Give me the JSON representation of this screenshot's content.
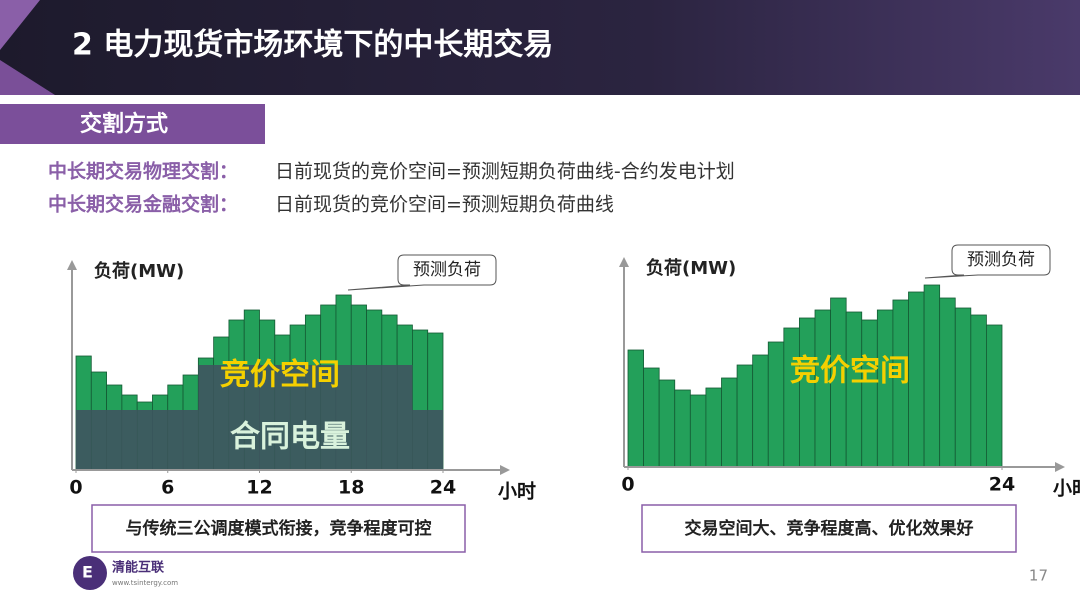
{
  "header": {
    "title": "2 电力现货市场环境下的中长期交易"
  },
  "section": "交割方式",
  "definitions": [
    {
      "term": "中长期交易物理交割：",
      "text": "日前现货的竞价空间=预测短期负荷曲线-合约发电计划"
    },
    {
      "term": "中长期交易金融交割：",
      "text": "日前现货的竞价空间=预测短期负荷曲线"
    }
  ],
  "chart_data": [
    {
      "type": "bar",
      "y_label": "负荷(MW)",
      "x_label": "小时",
      "callout": "预测负荷",
      "annotations": [
        "竞价空间",
        "合同电量"
      ],
      "caption": "与传统三公调度模式衔接，竞争程度可控",
      "xlim": [
        0,
        24
      ],
      "xticks": [
        0,
        6,
        12,
        18,
        24
      ],
      "ylim": [
        0,
        20
      ],
      "series": [
        {
          "color": "#23a05a",
          "values": [
            11.4,
            9.8,
            8.5,
            7.5,
            6.8,
            7.5,
            8.5,
            9.5,
            11.2,
            13.3,
            15,
            16,
            15,
            13.5,
            14.5,
            15.5,
            16.5,
            17.5,
            16.5,
            16,
            15.5,
            14.5,
            14,
            13.7
          ]
        },
        {
          "color": "#3f5660",
          "values": [
            6,
            6,
            6,
            6,
            6,
            6,
            6,
            6,
            10.5,
            10.5,
            10.5,
            10.5,
            10.5,
            10.5,
            10.5,
            10.5,
            10.5,
            10.5,
            10.5,
            10.5,
            10.5,
            10.5,
            6,
            6
          ]
        }
      ]
    },
    {
      "type": "bar",
      "y_label": "负荷(MW)",
      "x_label": "小时",
      "callout": "预测负荷",
      "annotations": [
        "竞价空间"
      ],
      "caption": "交易空间大、竞争程度高、优化效果好",
      "xlim": [
        0,
        24
      ],
      "xticks": [
        0,
        24
      ],
      "ylim": [
        0,
        20
      ],
      "series": [
        {
          "color": "#23a05a",
          "values": [
            11.7,
            9.9,
            8.7,
            7.7,
            7.2,
            7.9,
            8.9,
            10.2,
            11.2,
            12.5,
            13.9,
            14.9,
            15.7,
            16.9,
            15.5,
            14.7,
            15.7,
            16.7,
            17.5,
            18.2,
            16.9,
            15.9,
            15.2,
            14.2
          ]
        }
      ]
    }
  ],
  "footer": {
    "logo": "清能互联",
    "url": "www.tsintergy.com",
    "page": "17"
  }
}
